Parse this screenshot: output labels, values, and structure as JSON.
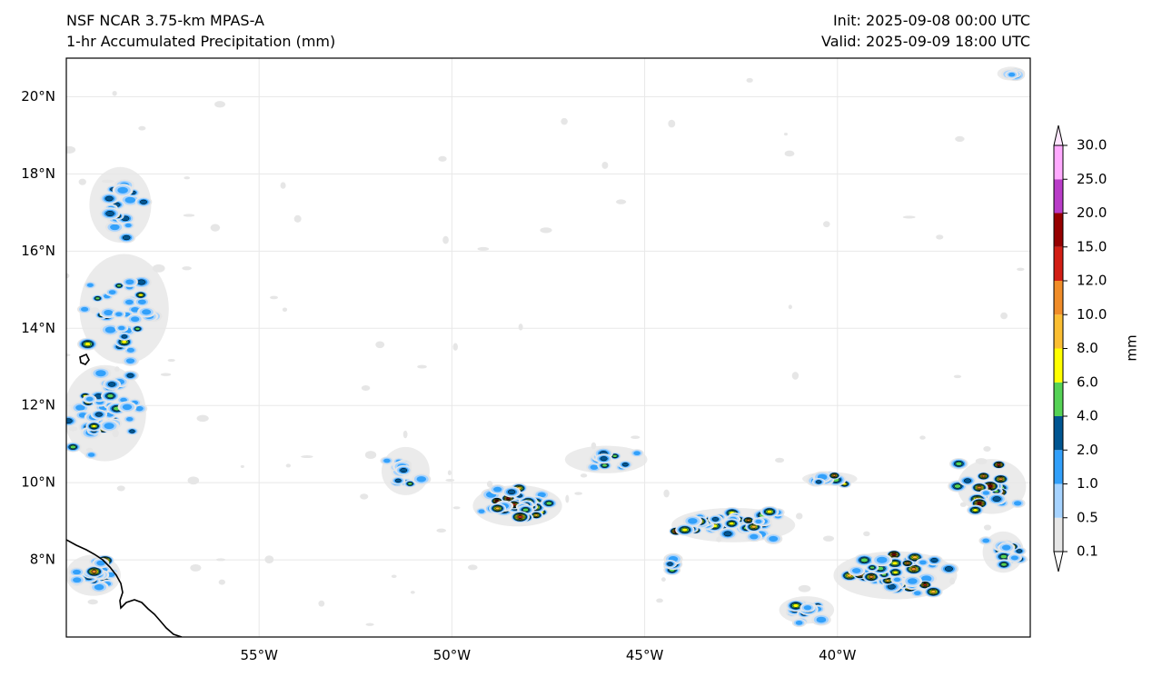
{
  "header": {
    "model": "NSF NCAR 3.75-km MPAS-A",
    "field": "1-hr Accumulated Precipitation (mm)",
    "init": "Init: 2025-09-08 00:00 UTC",
    "valid": "Valid: 2025-09-09 18:00 UTC"
  },
  "map": {
    "lon_range": [
      -60,
      -35
    ],
    "lat_range": [
      6,
      21
    ],
    "lat_ticks": [
      {
        "value": 20,
        "label": "20°N"
      },
      {
        "value": 18,
        "label": "18°N"
      },
      {
        "value": 16,
        "label": "16°N"
      },
      {
        "value": 14,
        "label": "14°N"
      },
      {
        "value": 12,
        "label": "12°N"
      },
      {
        "value": 10,
        "label": "10°N"
      },
      {
        "value": 8,
        "label": "8°N"
      }
    ],
    "lon_ticks": [
      {
        "value": -55,
        "label": "55°W"
      },
      {
        "value": -50,
        "label": "50°W"
      },
      {
        "value": -45,
        "label": "45°W"
      },
      {
        "value": -40,
        "label": "40°W"
      }
    ]
  },
  "colorbar": {
    "unit_label": "mm",
    "levels": [
      "0.1",
      "0.5",
      "1.0",
      "2.0",
      "4.0",
      "6.0",
      "8.0",
      "10.0",
      "12.0",
      "15.0",
      "20.0",
      "25.0",
      "30.0"
    ],
    "colors": [
      "#e6e6e6",
      "#a6d3ff",
      "#32a0fa",
      "#005591",
      "#55d255",
      "#ffff00",
      "#fbbe32",
      "#f08c28",
      "#d21e14",
      "#960000",
      "#b93cc8",
      "#ffaaff"
    ],
    "under_color": "#ffffff",
    "over_color": "#ffe6ff"
  },
  "precip_clusters": [
    {
      "lon": -59.0,
      "lat": 11.8,
      "spread": [
        1.2,
        1.4
      ],
      "count": 45,
      "max_level": 6
    },
    {
      "lon": -58.5,
      "lat": 14.5,
      "spread": [
        1.3,
        1.6
      ],
      "count": 35,
      "max_level": 5
    },
    {
      "lon": -58.6,
      "lat": 17.2,
      "spread": [
        0.9,
        1.1
      ],
      "count": 18,
      "max_level": 4
    },
    {
      "lon": -59.3,
      "lat": 7.6,
      "spread": [
        0.8,
        0.6
      ],
      "count": 22,
      "max_level": 8
    },
    {
      "lon": -51.2,
      "lat": 10.3,
      "spread": [
        0.7,
        0.7
      ],
      "count": 14,
      "max_level": 4
    },
    {
      "lon": -48.3,
      "lat": 9.4,
      "spread": [
        1.3,
        0.6
      ],
      "count": 34,
      "max_level": 9
    },
    {
      "lon": -46.0,
      "lat": 10.6,
      "spread": [
        1.2,
        0.4
      ],
      "count": 14,
      "max_level": 4
    },
    {
      "lon": -44.3,
      "lat": 7.9,
      "spread": [
        0.2,
        0.3
      ],
      "count": 5,
      "max_level": 5
    },
    {
      "lon": -42.7,
      "lat": 8.9,
      "spread": [
        1.8,
        0.5
      ],
      "count": 42,
      "max_level": 9
    },
    {
      "lon": -40.2,
      "lat": 10.1,
      "spread": [
        0.8,
        0.2
      ],
      "count": 12,
      "max_level": 10
    },
    {
      "lon": -38.5,
      "lat": 7.6,
      "spread": [
        1.8,
        0.7
      ],
      "count": 50,
      "max_level": 10
    },
    {
      "lon": -36.0,
      "lat": 9.9,
      "spread": [
        1.0,
        0.8
      ],
      "count": 22,
      "max_level": 9
    },
    {
      "lon": -35.7,
      "lat": 8.2,
      "spread": [
        0.6,
        0.6
      ],
      "count": 15,
      "max_level": 7
    },
    {
      "lon": -35.5,
      "lat": 20.6,
      "spread": [
        0.4,
        0.2
      ],
      "count": 6,
      "max_level": 4
    },
    {
      "lon": -40.8,
      "lat": 6.7,
      "spread": [
        0.8,
        0.4
      ],
      "count": 14,
      "max_level": 6
    }
  ]
}
